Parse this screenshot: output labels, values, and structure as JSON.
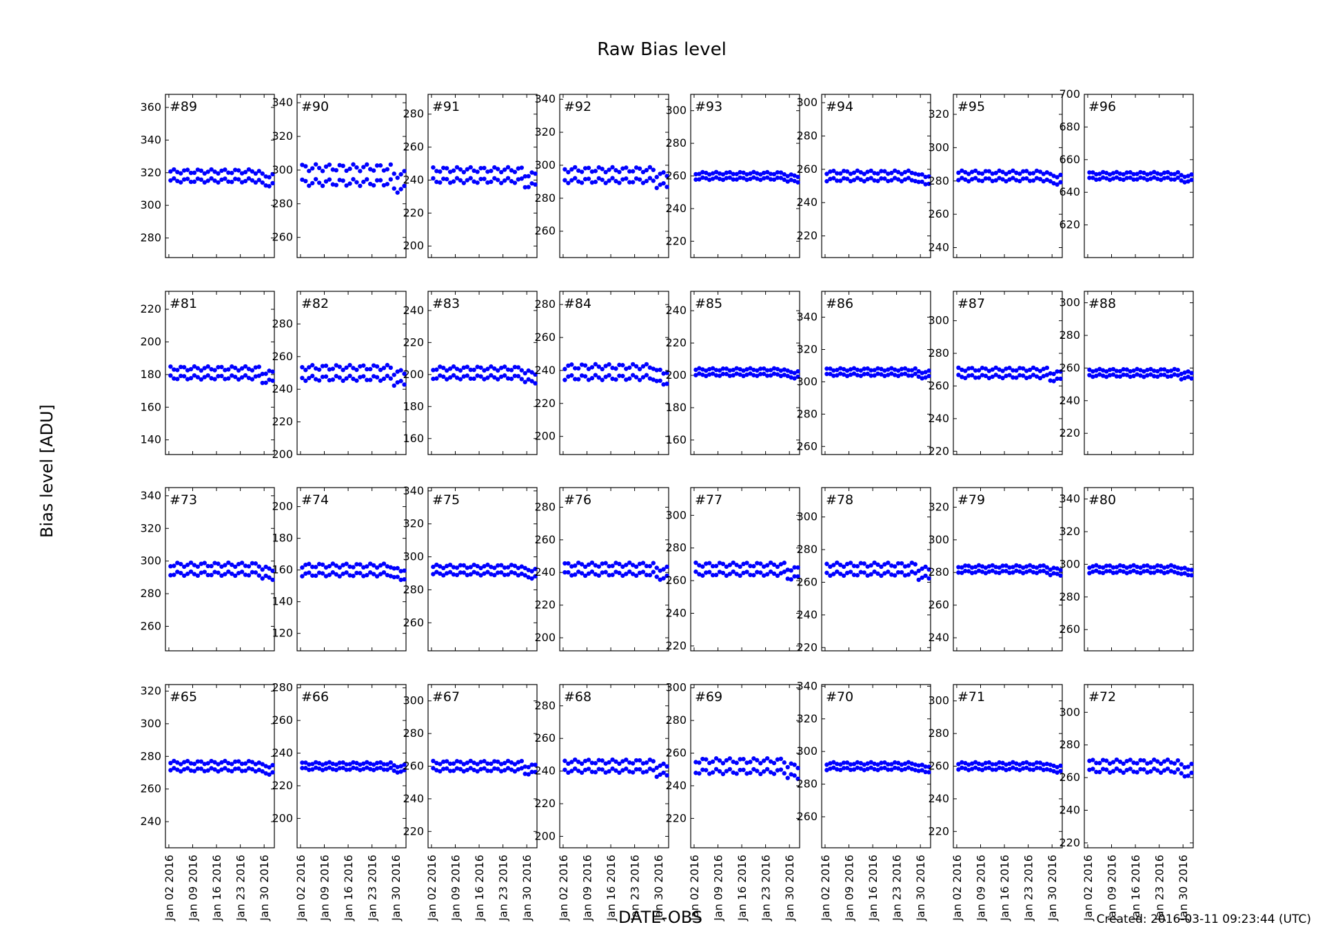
{
  "chart_data": {
    "type": "scatter",
    "title": "Raw Bias level",
    "xlabel": "DATE-OBS",
    "ylabel": "Bias level [ADU]",
    "footer": "Created: 2016-03-11 09:23:44 (UTC)",
    "x_ticks": [
      "Jan 02 2016",
      "Jan 09 2016",
      "Jan 16 2016",
      "Jan 23 2016",
      "Jan 30 2016"
    ],
    "xlim": [
      "2016-01-01",
      "2016-02-02"
    ],
    "point_color": "#0000ff",
    "grid": false,
    "rows": [
      [
        {
          "label": "#89",
          "ylim": [
            268,
            368
          ],
          "yticks": [
            280,
            300,
            320,
            340,
            360
          ],
          "center": 318,
          "spread": 5
        },
        {
          "label": "#90",
          "ylim": [
            248,
            345
          ],
          "yticks": [
            260,
            280,
            300,
            320,
            340
          ],
          "center": 297,
          "spread": 8
        },
        {
          "label": "#91",
          "ylim": [
            193,
            292
          ],
          "yticks": [
            200,
            220,
            240,
            260,
            280
          ],
          "center": 243,
          "spread": 6
        },
        {
          "label": "#92",
          "ylim": [
            244,
            343
          ],
          "yticks": [
            260,
            280,
            300,
            320,
            340
          ],
          "center": 294,
          "spread": 6
        },
        {
          "label": "#93",
          "ylim": [
            210,
            310
          ],
          "yticks": [
            220,
            240,
            260,
            280,
            300
          ],
          "center": 260,
          "spread": 3
        },
        {
          "label": "#94",
          "ylim": [
            207,
            305
          ],
          "yticks": [
            220,
            240,
            260,
            280,
            300
          ],
          "center": 256,
          "spread": 4
        },
        {
          "label": "#95",
          "ylim": [
            234,
            332
          ],
          "yticks": [
            240,
            260,
            280,
            300,
            320
          ],
          "center": 283,
          "spread": 4
        },
        {
          "label": "#96",
          "ylim": [
            600,
            700
          ],
          "yticks": [
            620,
            640,
            660,
            680,
            700
          ],
          "center": 650,
          "spread": 3
        }
      ],
      [
        {
          "label": "#81",
          "ylim": [
            131,
            231
          ],
          "yticks": [
            140,
            160,
            180,
            200,
            220
          ],
          "center": 181,
          "spread": 5
        },
        {
          "label": "#82",
          "ylim": [
            200,
            300
          ],
          "yticks": [
            200,
            220,
            240,
            260,
            280
          ],
          "center": 250,
          "spread": 6
        },
        {
          "label": "#83",
          "ylim": [
            150,
            252
          ],
          "yticks": [
            160,
            180,
            200,
            220,
            240
          ],
          "center": 201,
          "spread": 5
        },
        {
          "label": "#84",
          "ylim": [
            189,
            288
          ],
          "yticks": [
            200,
            220,
            240,
            260,
            280
          ],
          "center": 239,
          "spread": 6
        },
        {
          "label": "#85",
          "ylim": [
            151,
            252
          ],
          "yticks": [
            160,
            180,
            200,
            220,
            240
          ],
          "center": 202,
          "spread": 3
        },
        {
          "label": "#86",
          "ylim": [
            255,
            356
          ],
          "yticks": [
            260,
            280,
            300,
            320,
            340
          ],
          "center": 306,
          "spread": 3
        },
        {
          "label": "#87",
          "ylim": [
            218,
            318
          ],
          "yticks": [
            220,
            240,
            260,
            280,
            300
          ],
          "center": 268,
          "spread": 4
        },
        {
          "label": "#88",
          "ylim": [
            207,
            307
          ],
          "yticks": [
            220,
            240,
            260,
            280,
            300
          ],
          "center": 257,
          "spread": 3
        }
      ],
      [
        {
          "label": "#73",
          "ylim": [
            245,
            345
          ],
          "yticks": [
            260,
            280,
            300,
            320,
            340
          ],
          "center": 295,
          "spread": 5
        },
        {
          "label": "#74",
          "ylim": [
            109,
            212
          ],
          "yticks": [
            120,
            140,
            160,
            180,
            200
          ],
          "center": 160,
          "spread": 5
        },
        {
          "label": "#75",
          "ylim": [
            243,
            342
          ],
          "yticks": [
            260,
            280,
            300,
            320,
            340
          ],
          "center": 292,
          "spread": 4
        },
        {
          "label": "#76",
          "ylim": [
            192,
            292
          ],
          "yticks": [
            200,
            220,
            240,
            260,
            280
          ],
          "center": 242,
          "spread": 5
        },
        {
          "label": "#77",
          "ylim": [
            217,
            317
          ],
          "yticks": [
            220,
            240,
            260,
            280,
            300
          ],
          "center": 267,
          "spread": 5
        },
        {
          "label": "#78",
          "ylim": [
            218,
            318
          ],
          "yticks": [
            220,
            240,
            260,
            280,
            300
          ],
          "center": 268,
          "spread": 5
        },
        {
          "label": "#79",
          "ylim": [
            232,
            332
          ],
          "yticks": [
            240,
            260,
            280,
            300,
            320
          ],
          "center": 282,
          "spread": 3
        },
        {
          "label": "#80",
          "ylim": [
            247,
            347
          ],
          "yticks": [
            260,
            280,
            300,
            320,
            340
          ],
          "center": 297,
          "spread": 3
        }
      ],
      [
        {
          "label": "#65",
          "ylim": [
            224,
            324
          ],
          "yticks": [
            240,
            260,
            280,
            300,
            320
          ],
          "center": 274,
          "spread": 4
        },
        {
          "label": "#66",
          "ylim": [
            182,
            282
          ],
          "yticks": [
            200,
            220,
            240,
            260,
            280
          ],
          "center": 232,
          "spread": 3
        },
        {
          "label": "#67",
          "ylim": [
            210,
            310
          ],
          "yticks": [
            220,
            240,
            260,
            280,
            300
          ],
          "center": 260,
          "spread": 4
        },
        {
          "label": "#68",
          "ylim": [
            193,
            293
          ],
          "yticks": [
            200,
            220,
            240,
            260,
            280
          ],
          "center": 243,
          "spread": 5
        },
        {
          "label": "#69",
          "ylim": [
            202,
            302
          ],
          "yticks": [
            220,
            240,
            260,
            280,
            300
          ],
          "center": 252,
          "spread": 6
        },
        {
          "label": "#70",
          "ylim": [
            241,
            341
          ],
          "yticks": [
            260,
            280,
            300,
            320,
            340
          ],
          "center": 291,
          "spread": 3
        },
        {
          "label": "#71",
          "ylim": [
            210,
            310
          ],
          "yticks": [
            220,
            240,
            260,
            280,
            300
          ],
          "center": 260,
          "spread": 3
        },
        {
          "label": "#72",
          "ylim": [
            217,
            317
          ],
          "yticks": [
            220,
            240,
            260,
            280,
            300
          ],
          "center": 267,
          "spread": 5
        }
      ]
    ]
  }
}
